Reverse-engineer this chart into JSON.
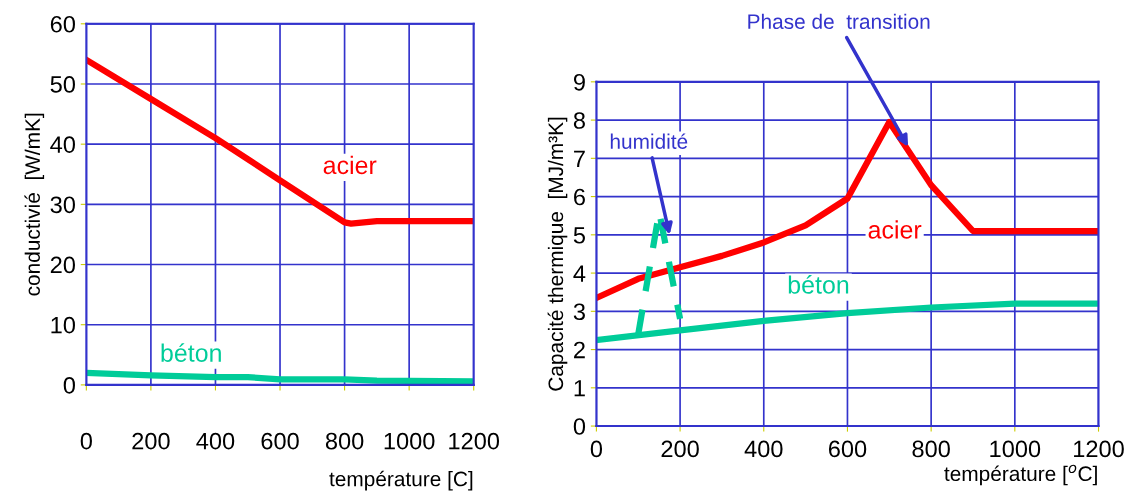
{
  "chart_data": [
    {
      "type": "line",
      "xlabel": "température [C]",
      "ylabel": "conductivié  [W/mK]",
      "xlim": [
        0,
        1200
      ],
      "ylim": [
        0,
        60
      ],
      "xticks": [
        0,
        200,
        400,
        600,
        800,
        1000,
        1200
      ],
      "yticks": [
        0,
        10,
        20,
        30,
        40,
        50,
        60
      ],
      "grid": true,
      "series": [
        {
          "name": "acier",
          "color": "#ff0000",
          "x": [
            0,
            200,
            400,
            600,
            700,
            800,
            820,
            900,
            1200
          ],
          "values": [
            54,
            47.5,
            41,
            34,
            30.5,
            27,
            26.8,
            27.2,
            27.2
          ]
        },
        {
          "name": "béton",
          "color": "#00cc99",
          "x": [
            0,
            200,
            400,
            500,
            600,
            800,
            900,
            1200
          ],
          "values": [
            2,
            1.6,
            1.3,
            1.3,
            0.9,
            0.9,
            0.7,
            0.6
          ]
        }
      ]
    },
    {
      "type": "line",
      "xlabel": "température [$^{o}$C]",
      "ylabel": "Capacité thermique  [MJ/m³K]",
      "xlim": [
        0,
        1200
      ],
      "ylim": [
        0,
        9
      ],
      "xticks": [
        0,
        200,
        400,
        600,
        800,
        1000,
        1200
      ],
      "yticks": [
        0,
        1,
        2,
        3,
        4,
        5,
        6,
        7,
        8,
        9
      ],
      "grid": true,
      "series": [
        {
          "name": "acier",
          "color": "#ff0000",
          "x": [
            0,
            100,
            200,
            300,
            400,
            500,
            600,
            700,
            800,
            900,
            1200
          ],
          "values": [
            3.35,
            3.85,
            4.15,
            4.45,
            4.8,
            5.25,
            5.95,
            7.95,
            6.3,
            5.1,
            5.1
          ]
        },
        {
          "name": "béton",
          "color": "#00cc99",
          "x": [
            0,
            200,
            400,
            600,
            800,
            1000,
            1100,
            1200
          ],
          "values": [
            2.25,
            2.5,
            2.75,
            2.95,
            3.1,
            3.2,
            3.2,
            3.2
          ]
        },
        {
          "color": "#00cc99",
          "line_style": "dashed",
          "x": [
            100,
            150,
            200
          ],
          "values": [
            2.4,
            5.6,
            2.8
          ]
        }
      ],
      "annotations": [
        {
          "text": "humidité",
          "x": 175,
          "y": 5
        },
        {
          "text": "Phase de  transition",
          "x": 745,
          "y": 7.3
        }
      ]
    }
  ]
}
